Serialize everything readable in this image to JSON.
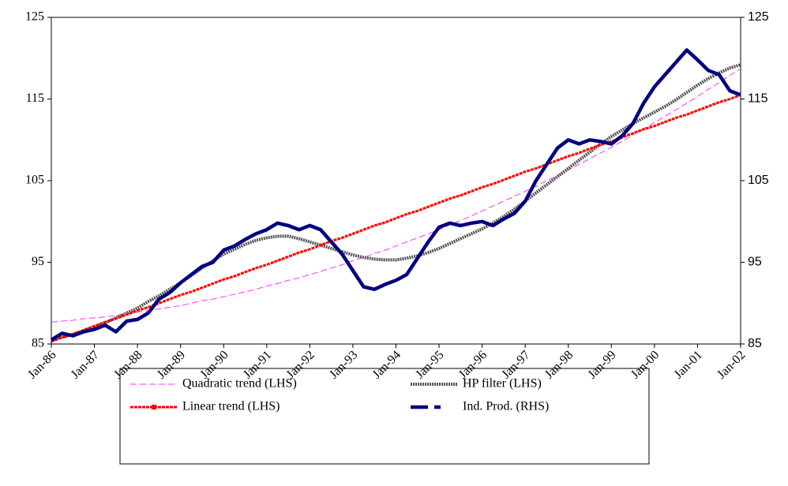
{
  "chart_data": {
    "type": "line",
    "categories": [
      "Jan-86",
      null,
      null,
      null,
      "Jan-87",
      null,
      null,
      null,
      "Jan-88",
      null,
      null,
      null,
      "Jan-89",
      null,
      null,
      null,
      "Jan-90",
      null,
      null,
      null,
      "Jan-91",
      null,
      null,
      null,
      "Jan-92",
      null,
      null,
      null,
      "Jan-93",
      null,
      null,
      null,
      "Jan-94",
      null,
      null,
      null,
      "Jan-95",
      null,
      null,
      null,
      "Jan-96",
      null,
      null,
      null,
      "Jan-97",
      null,
      null,
      null,
      "Jan-98",
      null,
      null,
      null,
      "Jan-99",
      null,
      null,
      null,
      "Jan-00",
      null,
      null,
      null,
      "Jan-01",
      null,
      null,
      null,
      "Jan-02"
    ],
    "series": [
      {
        "name": "Quadratic trend (LHS)",
        "color": "#ff33ff",
        "values": [
          87.7,
          87.8,
          87.9,
          88.1,
          88.2,
          88.3,
          88.5,
          88.7,
          88.9,
          89.1,
          89.3,
          89.5,
          89.7,
          90.0,
          90.3,
          90.5,
          90.8,
          91.1,
          91.4,
          91.7,
          92.1,
          92.4,
          92.8,
          93.1,
          93.5,
          93.9,
          94.3,
          94.7,
          95.2,
          95.6,
          96.1,
          96.5,
          97.0,
          97.5,
          98.0,
          98.5,
          99.0,
          99.6,
          100.1,
          100.7,
          101.3,
          101.9,
          102.5,
          103.1,
          103.7,
          104.3,
          105.0,
          105.6,
          106.3,
          107.0,
          107.7,
          108.4,
          109.1,
          109.8,
          110.6,
          111.4,
          112.1,
          112.9,
          113.7,
          114.5,
          115.3,
          116.2,
          117.0,
          117.9,
          118.7
        ]
      },
      {
        "name": "HP filter (LHS)",
        "color": "#555555",
        "values": [
          85.5,
          85.8,
          86.2,
          86.6,
          87.0,
          87.6,
          88.2,
          88.8,
          89.4,
          90.2,
          90.9,
          91.7,
          92.5,
          93.4,
          94.3,
          95.2,
          96.0,
          96.6,
          97.2,
          97.7,
          98.0,
          98.2,
          98.2,
          97.9,
          97.5,
          97.1,
          96.7,
          96.3,
          95.9,
          95.6,
          95.4,
          95.3,
          95.3,
          95.5,
          95.8,
          96.2,
          96.7,
          97.3,
          97.9,
          98.5,
          99.1,
          99.8,
          100.6,
          101.5,
          102.5,
          103.5,
          104.5,
          105.5,
          106.5,
          107.5,
          108.5,
          109.5,
          110.4,
          111.2,
          112.0,
          112.7,
          113.4,
          114.1,
          114.9,
          115.8,
          116.7,
          117.5,
          118.2,
          118.8,
          119.2
        ]
      },
      {
        "name": "Linear trend (LHS)",
        "color": "#ff0000",
        "values": [
          85.3,
          85.8,
          86.2,
          86.7,
          87.2,
          87.7,
          88.1,
          88.6,
          89.1,
          89.5,
          90.0,
          90.5,
          91.0,
          91.4,
          91.9,
          92.4,
          92.9,
          93.3,
          93.8,
          94.3,
          94.7,
          95.2,
          95.7,
          96.2,
          96.6,
          97.1,
          97.6,
          98.0,
          98.5,
          99.0,
          99.5,
          99.9,
          100.4,
          100.9,
          101.3,
          101.8,
          102.3,
          102.8,
          103.2,
          103.7,
          104.2,
          104.6,
          105.1,
          105.6,
          106.1,
          106.5,
          107.0,
          107.5,
          108.0,
          108.4,
          108.9,
          109.4,
          109.8,
          110.3,
          110.8,
          111.3,
          111.7,
          112.2,
          112.7,
          113.1,
          113.6,
          114.1,
          114.6,
          115.0,
          115.5
        ]
      },
      {
        "name": "Ind. Prod. (RHS)",
        "color": "#000080",
        "axis": "y2",
        "values": [
          85.5,
          86.3,
          86.0,
          86.5,
          86.8,
          87.3,
          86.5,
          87.8,
          88.0,
          88.8,
          90.5,
          91.3,
          92.5,
          93.5,
          94.5,
          95.0,
          96.5,
          97.0,
          97.8,
          98.5,
          99.0,
          99.8,
          99.5,
          99.0,
          99.5,
          99.0,
          97.5,
          96.0,
          94.0,
          92.0,
          91.7,
          92.3,
          92.8,
          93.5,
          95.5,
          97.5,
          99.3,
          99.8,
          99.5,
          99.8,
          100.0,
          99.5,
          100.3,
          101.0,
          102.5,
          105.0,
          107.0,
          109.0,
          110.0,
          109.5,
          110.0,
          109.8,
          109.5,
          110.5,
          112.0,
          114.5,
          116.5,
          118.0,
          119.5,
          121.0,
          119.8,
          118.5,
          118.0,
          116.0,
          115.5
        ]
      }
    ],
    "ylim": [
      85,
      125
    ],
    "yticks": [
      85,
      95,
      105,
      115,
      125
    ],
    "y2lim": [
      85,
      125
    ],
    "y2ticks": [
      85,
      95,
      105,
      115,
      125
    ]
  }
}
